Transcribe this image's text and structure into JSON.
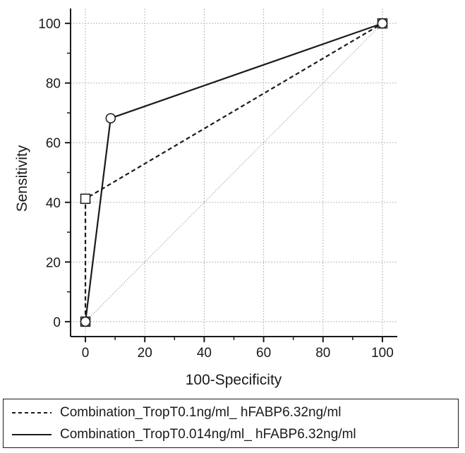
{
  "chart_data": {
    "type": "line",
    "xlabel": "100-Specificity",
    "ylabel": "Sensitivity",
    "xlim": [
      -5,
      105
    ],
    "ylim": [
      -5,
      105
    ],
    "x_ticks": [
      0,
      20,
      40,
      60,
      80,
      100
    ],
    "y_ticks": [
      0,
      20,
      40,
      60,
      80,
      100
    ],
    "grid": true,
    "legend_position": "bottom",
    "series": [
      {
        "name": "Combination_TropT0.1ng/ml_ hFABP6.32ng/ml",
        "style": "dashed",
        "marker": "square",
        "points": [
          [
            0,
            0
          ],
          [
            0,
            41.2
          ],
          [
            100,
            100
          ]
        ]
      },
      {
        "name": "Combination_TropT0.014ng/ml_ hFABP6.32ng/ml",
        "style": "solid",
        "marker": "circle",
        "points": [
          [
            0,
            0
          ],
          [
            8.5,
            68.2
          ],
          [
            100,
            100
          ]
        ]
      }
    ],
    "reference_line": [
      [
        0,
        0
      ],
      [
        100,
        100
      ]
    ]
  }
}
